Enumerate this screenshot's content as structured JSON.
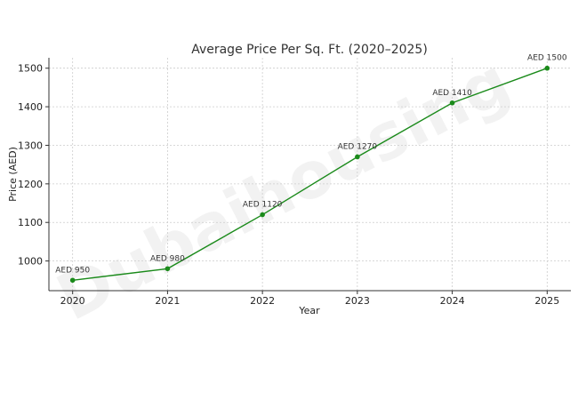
{
  "watermark": "Dubaihousing",
  "chart_data": {
    "type": "line",
    "title": "Average Price Per Sq. Ft. (2020–2025)",
    "xlabel": "Year",
    "ylabel": "Price (AED)",
    "x": [
      2020,
      2021,
      2022,
      2023,
      2024,
      2025
    ],
    "x_tick_labels": [
      "2020",
      "2021",
      "2022",
      "2023",
      "2024",
      "2025"
    ],
    "y_ticks": [
      1000,
      1100,
      1200,
      1300,
      1400,
      1500
    ],
    "y_tick_labels": [
      "1000",
      "1100",
      "1200",
      "1300",
      "1400",
      "1500"
    ],
    "xlim": [
      2019.75,
      2025.25
    ],
    "ylim": [
      923,
      1527
    ],
    "grid": true,
    "series": [
      {
        "values": [
          950,
          980,
          1120,
          1270,
          1410,
          1500
        ],
        "labels": [
          "AED 950",
          "AED 980",
          "AED 1120",
          "AED 1270",
          "AED 1410",
          "AED 1500"
        ],
        "color": "#1a8a1a"
      }
    ],
    "grid_color": "#cccccc",
    "axis_color": "#333333"
  }
}
